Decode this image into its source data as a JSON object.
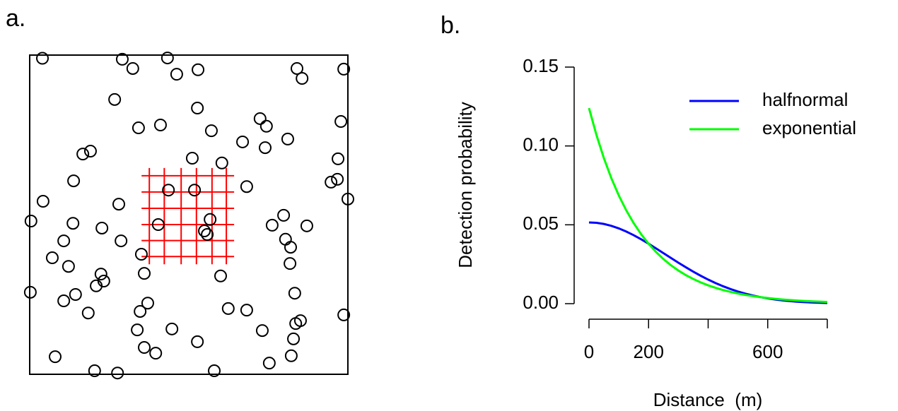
{
  "chart_data": [
    {
      "type": "scatter",
      "panel_label": "a.",
      "xlim": [
        0,
        100
      ],
      "ylim": [
        0,
        100
      ],
      "x": [
        4,
        29.1,
        43.3,
        32.4,
        46.2,
        52.9,
        84,
        85.6,
        98.7,
        26.7,
        52.7,
        34.2,
        41.1,
        57.1,
        72.4,
        74.4,
        97.8,
        66.9,
        74,
        81.1,
        16.7,
        19.1,
        51.1,
        60.4,
        96.9,
        13.8,
        43.6,
        51.8,
        68.2,
        94.7,
        96.7,
        100,
        4.2,
        28,
        0.4,
        13.6,
        22.7,
        40.4,
        56.7,
        54.9,
        55.8,
        79.8,
        76.2,
        87.1,
        10.7,
        28.7,
        80.4,
        82,
        7.1,
        35.1,
        12.2,
        81.8,
        22.4,
        36,
        23.3,
        20.9,
        60,
        0.2,
        14.4,
        10.7,
        37.1,
        83.3,
        34.7,
        18.4,
        62.4,
        68.2,
        98.7,
        83.6,
        85.1,
        33.8,
        44.7,
        73.1,
        52.7,
        36,
        39.6,
        82.9,
        8,
        82.2,
        75.3,
        20.4,
        27.6,
        58
      ],
      "y": [
        99,
        98.7,
        99.1,
        95.8,
        94,
        95.4,
        95.8,
        92.7,
        95.6,
        86.1,
        83.4,
        77.2,
        78.1,
        76.3,
        80.1,
        77.7,
        79.2,
        72.8,
        71,
        73.7,
        69,
        69.9,
        67.7,
        66.2,
        67.5,
        60.6,
        57.7,
        57.7,
        58.8,
        60.2,
        61.1,
        54.9,
        54.2,
        53.3,
        48,
        47.3,
        45.8,
        46.9,
        48.5,
        44.9,
        43.8,
        49.8,
        46.7,
        46.5,
        41.8,
        41.8,
        42.3,
        39.8,
        36.5,
        37.6,
        33.8,
        34.7,
        31.4,
        31.6,
        29.2,
        27.7,
        30.8,
        25.7,
        25,
        23,
        22.3,
        25.4,
        19.7,
        19.2,
        20.6,
        20.1,
        18.6,
        15.9,
        16.8,
        13.9,
        14.2,
        13.7,
        10.2,
        8.4,
        6.6,
        11.1,
        5.5,
        5.8,
        3.5,
        1.1,
        0.4,
        1.1
      ],
      "color": "#000000",
      "traps": {
        "x": [
          37.6,
          42.3,
          47.6,
          52.4,
          57.3,
          61.8
        ],
        "y": [
          62.2,
          57.1,
          52,
          46.9,
          41.9,
          36.9
        ],
        "color": "#ff0000"
      }
    },
    {
      "type": "line",
      "panel_label": "b.",
      "xlabel": "Distance  (m)",
      "ylabel": "Detection probability",
      "xlim": [
        0,
        800
      ],
      "ylim": [
        0,
        0.15
      ],
      "xticks": [
        0,
        200,
        {
          "value": 400,
          "label": null
        },
        600,
        {
          "value": 800,
          "label": null
        }
      ],
      "yticks": [
        {
          "value": 0,
          "label": "0.00"
        },
        0.05,
        {
          "value": 0.1,
          "label": "0.10"
        },
        0.15
      ],
      "legend": "top-right",
      "x": [
        0,
        25,
        50,
        75,
        100,
        125,
        150,
        175,
        200,
        225,
        250,
        275,
        300,
        325,
        350,
        375,
        400,
        425,
        450,
        475,
        500,
        525,
        550,
        575,
        600,
        625,
        650,
        675,
        700,
        725,
        750,
        775,
        800
      ],
      "series": [
        {
          "name": "halfnormal",
          "color": "#0000ff",
          "values": [
            0.0515,
            0.05126,
            0.05053,
            0.04935,
            0.04773,
            0.04573,
            0.04341,
            0.04081,
            0.038,
            0.03505,
            0.03203,
            0.02899,
            0.02599,
            0.02308,
            0.0203,
            0.01769,
            0.01527,
            0.01305,
            0.01105,
            0.00927,
            0.0077,
            0.00634,
            0.00517,
            0.00417,
            0.00334,
            0.00265,
            0.00208,
            0.00161,
            0.00124,
            0.00095,
            0.00072,
            0.00054,
            0.0004
          ]
        },
        {
          "name": "exponential",
          "color": "#00ff00",
          "values": [
            0.124,
            0.10695,
            0.09224,
            0.07956,
            0.06862,
            0.05918,
            0.05105,
            0.04403,
            0.03797,
            0.03275,
            0.02825,
            0.02436,
            0.02101,
            0.01812,
            0.01563,
            0.01348,
            0.01163,
            0.01003,
            0.00865,
            0.00746,
            0.00643,
            0.00555,
            0.00479,
            0.00413,
            0.00356,
            0.00307,
            0.00265,
            0.00228,
            0.00197,
            0.0017,
            0.00147,
            0.00127,
            0.00109
          ]
        }
      ]
    }
  ]
}
